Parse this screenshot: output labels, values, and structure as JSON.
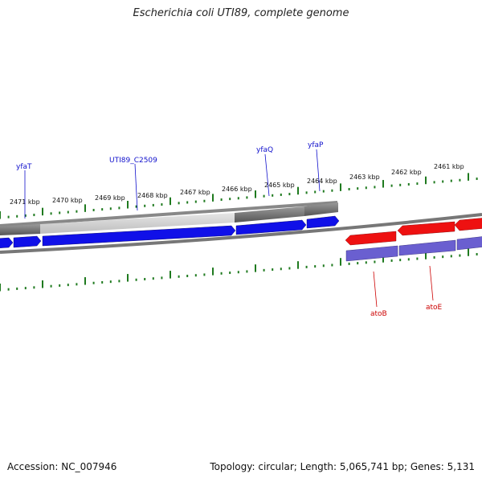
{
  "title": "Escherichia coli UTI89, complete genome",
  "footer": {
    "accession": "Accession: NC_007946",
    "topology": "Topology: circular; Length: 5,065,741 bp; Genes: 5,131"
  },
  "colors": {
    "forward_cds": "#1010e8",
    "reverse_cds": "#ee1111",
    "reverse_cds_lower": "#6a5fd0",
    "gene_backbone": "#777777",
    "tick_green": "#1f7a1f",
    "forward_label": "#1010cc",
    "reverse_label": "#cc0000"
  },
  "scale": {
    "kbp_labels": [
      "2471 kbp",
      "2470 kbp",
      "2469 kbp",
      "2468 kbp",
      "2467 kbp",
      "2466 kbp",
      "2465 kbp",
      "2464 kbp",
      "2463 kbp",
      "2462 kbp",
      "2461 kbp"
    ]
  },
  "genes": {
    "forward": [
      {
        "name": "yfaT"
      },
      {
        "name": "UTI89_C2509"
      },
      {
        "name": "yfaQ"
      },
      {
        "name": "yfaP"
      }
    ],
    "reverse": [
      {
        "name": "atoB"
      },
      {
        "name": "atoE"
      }
    ]
  }
}
